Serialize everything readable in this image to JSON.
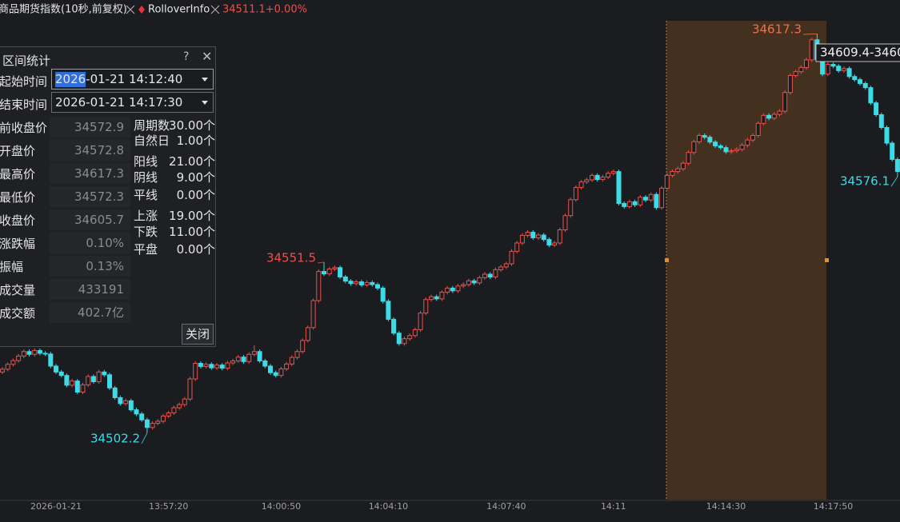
{
  "tabs": [
    "商品期货指数(10秒,前复权)",
    "RolloverInfo"
  ],
  "quote": "34511.1+0.00%",
  "chart_data": {
    "type": "candlestick",
    "x": [
      null,
      null,
      null,
      null,
      null,
      null,
      null,
      null,
      null,
      null,
      "2026-01-21",
      null,
      null,
      null,
      null,
      null,
      null,
      null,
      null,
      null,
      null,
      null,
      null,
      null,
      null,
      null,
      null,
      null,
      null,
      null,
      null,
      "13:57:20",
      null,
      null,
      null,
      null,
      null,
      null,
      null,
      null,
      null,
      null,
      null,
      null,
      null,
      null,
      null,
      null,
      null,
      null,
      null,
      null,
      "14:00:50",
      null,
      null,
      null,
      null,
      null,
      null,
      null,
      null,
      null,
      null,
      null,
      null,
      null,
      null,
      null,
      null,
      null,
      null,
      null,
      "14:04:10",
      null,
      null,
      null,
      null,
      null,
      null,
      null,
      null,
      null,
      null,
      null,
      null,
      null,
      null,
      null,
      null,
      null,
      null,
      null,
      null,
      null,
      "14:07:40",
      null,
      null,
      null,
      null,
      null,
      null,
      null,
      null,
      null,
      null,
      null,
      null,
      null,
      null,
      null,
      null,
      null,
      null,
      null,
      "14:11",
      null,
      null,
      null,
      null,
      null,
      null,
      null,
      null,
      null,
      null,
      null,
      null,
      null,
      null,
      null,
      null,
      null,
      null,
      null,
      null,
      "14:14:30",
      null,
      null,
      null,
      null,
      null,
      null,
      null,
      null,
      null,
      null,
      null,
      null,
      null,
      null,
      null,
      null,
      null,
      null,
      null,
      "14:17:50",
      null,
      null,
      null,
      null,
      null,
      null,
      null,
      null,
      null,
      null,
      null,
      null
    ],
    "candles": [
      [
        34519.8,
        34521.2,
        34519.2,
        34520.6
      ],
      [
        34520.6,
        34522.6,
        34520.0,
        34522.0
      ],
      [
        34522.0,
        34523.7,
        34521.4,
        34523.1
      ],
      [
        34523.1,
        34525.0,
        34522.5,
        34524.4
      ],
      [
        34524.4,
        34526.3,
        34523.8,
        34525.7
      ],
      [
        34525.7,
        34526.3,
        34524.3,
        34524.9
      ],
      [
        34524.9,
        34526.6,
        34524.3,
        34526.0
      ],
      [
        34526.0,
        34526.6,
        34524.6,
        34525.2
      ],
      [
        34525.2,
        34525.8,
        34524.4,
        34525.0
      ],
      [
        34525.0,
        34525.6,
        34520.9,
        34521.5
      ],
      [
        34521.5,
        34522.1,
        34519.2,
        34519.8
      ],
      [
        34519.8,
        34520.4,
        34518.2,
        34518.8
      ],
      [
        34518.8,
        34519.4,
        34515.4,
        34516.0
      ],
      [
        34516.0,
        34517.8,
        34515.4,
        34517.2
      ],
      [
        34517.2,
        34517.8,
        34513.4,
        34514.0
      ],
      [
        34514.0,
        34516.7,
        34513.4,
        34516.1
      ],
      [
        34516.1,
        34519.1,
        34515.5,
        34518.5
      ],
      [
        34518.5,
        34519.1,
        34516.4,
        34517.0
      ],
      [
        34517.0,
        34520.4,
        34516.4,
        34519.8
      ],
      [
        34519.8,
        34520.4,
        34518.4,
        34519.0
      ],
      [
        34519.0,
        34519.6,
        34514.6,
        34515.2
      ],
      [
        34515.2,
        34515.8,
        34511.8,
        34512.4
      ],
      [
        34512.4,
        34513.0,
        34510.1,
        34510.7
      ],
      [
        34510.7,
        34512.1,
        34510.1,
        34511.5
      ],
      [
        34511.5,
        34512.1,
        34508.3,
        34508.9
      ],
      [
        34508.9,
        34509.5,
        34507.1,
        34507.7
      ],
      [
        34507.7,
        34508.3,
        34505.4,
        34506.0
      ],
      [
        34506.0,
        34506.6,
        34502.2,
        34503.8
      ],
      [
        34503.8,
        34505.6,
        34503.2,
        34505.0
      ],
      [
        34505.0,
        34506.2,
        34504.4,
        34505.6
      ],
      [
        34505.6,
        34507.7,
        34505.0,
        34507.1
      ],
      [
        34507.1,
        34508.6,
        34506.5,
        34508.0
      ],
      [
        34508.0,
        34510.1,
        34507.4,
        34509.5
      ],
      [
        34509.5,
        34511.0,
        34508.9,
        34510.4
      ],
      [
        34510.4,
        34512.6,
        34509.8,
        34512.0
      ],
      [
        34512.0,
        34518.4,
        34511.4,
        34517.8
      ],
      [
        34517.8,
        34522.9,
        34517.2,
        34522.3
      ],
      [
        34522.3,
        34522.9,
        34520.8,
        34521.4
      ],
      [
        34521.4,
        34522.6,
        34520.8,
        34522.0
      ],
      [
        34522.0,
        34522.6,
        34520.4,
        34521.0
      ],
      [
        34521.0,
        34522.4,
        34520.4,
        34521.8
      ],
      [
        34521.8,
        34522.4,
        34520.3,
        34520.9
      ],
      [
        34520.9,
        34523.0,
        34520.3,
        34522.4
      ],
      [
        34522.4,
        34523.6,
        34521.8,
        34523.0
      ],
      [
        34523.0,
        34524.7,
        34522.4,
        34524.1
      ],
      [
        34524.1,
        34524.7,
        34522.2,
        34522.8
      ],
      [
        34522.8,
        34525.5,
        34522.2,
        34524.9
      ],
      [
        34524.9,
        34527.5,
        34524.3,
        34525.7
      ],
      [
        34525.7,
        34526.3,
        34522.4,
        34523.0
      ],
      [
        34523.0,
        34523.6,
        34520.9,
        34521.5
      ],
      [
        34521.5,
        34522.1,
        34519.0,
        34519.6
      ],
      [
        34519.6,
        34520.2,
        34518.2,
        34518.8
      ],
      [
        34518.8,
        34521.3,
        34518.2,
        34520.7
      ],
      [
        34520.7,
        34522.7,
        34520.1,
        34522.1
      ],
      [
        34522.1,
        34524.6,
        34521.5,
        34524.0
      ],
      [
        34524.0,
        34526.3,
        34523.4,
        34525.7
      ],
      [
        34525.7,
        34529.5,
        34525.1,
        34528.9
      ],
      [
        34528.9,
        34533.2,
        34528.3,
        34532.6
      ],
      [
        34532.6,
        34541.0,
        34532.0,
        34540.4
      ],
      [
        34540.4,
        34549.4,
        34539.8,
        34548.8
      ],
      [
        34548.8,
        34551.5,
        34547.5,
        34548.1
      ],
      [
        34548.1,
        34550.1,
        34547.5,
        34549.5
      ],
      [
        34549.5,
        34550.5,
        34548.9,
        34549.9
      ],
      [
        34549.9,
        34550.5,
        34546.6,
        34547.2
      ],
      [
        34547.2,
        34547.8,
        34545.4,
        34546.0
      ],
      [
        34546.0,
        34546.6,
        34544.7,
        34545.3
      ],
      [
        34545.3,
        34546.4,
        34544.7,
        34545.8
      ],
      [
        34545.8,
        34546.4,
        34544.3,
        34544.9
      ],
      [
        34544.9,
        34546.2,
        34544.3,
        34545.6
      ],
      [
        34545.6,
        34546.2,
        34544.4,
        34545.0
      ],
      [
        34545.0,
        34545.6,
        34543.4,
        34544.0
      ],
      [
        34544.0,
        34544.6,
        34539.6,
        34540.2
      ],
      [
        34540.2,
        34540.8,
        34534.4,
        34535.0
      ],
      [
        34535.0,
        34535.6,
        34530.4,
        34531.0
      ],
      [
        34531.0,
        34531.6,
        34527.4,
        34528.0
      ],
      [
        34528.0,
        34530.0,
        34527.4,
        34529.4
      ],
      [
        34529.4,
        34530.9,
        34528.8,
        34530.3
      ],
      [
        34530.3,
        34532.6,
        34529.7,
        34532.0
      ],
      [
        34532.0,
        34537.4,
        34531.4,
        34536.8
      ],
      [
        34536.8,
        34541.3,
        34536.2,
        34540.7
      ],
      [
        34540.7,
        34542.1,
        34540.1,
        34541.5
      ],
      [
        34541.5,
        34542.1,
        34540.3,
        34540.9
      ],
      [
        34540.9,
        34543.4,
        34540.3,
        34542.8
      ],
      [
        34542.8,
        34544.6,
        34542.2,
        34544.0
      ],
      [
        34544.0,
        34544.6,
        34542.6,
        34543.2
      ],
      [
        34543.2,
        34545.2,
        34542.6,
        34544.6
      ],
      [
        34544.6,
        34545.6,
        34544.0,
        34545.0
      ],
      [
        34545.0,
        34546.7,
        34544.4,
        34546.1
      ],
      [
        34546.1,
        34546.7,
        34544.9,
        34545.5
      ],
      [
        34545.5,
        34547.6,
        34544.9,
        34547.0
      ],
      [
        34547.0,
        34548.6,
        34546.4,
        34548.0
      ],
      [
        34548.0,
        34548.6,
        34546.6,
        34547.2
      ],
      [
        34547.2,
        34549.9,
        34546.6,
        34549.3
      ],
      [
        34549.3,
        34550.7,
        34548.7,
        34550.1
      ],
      [
        34550.1,
        34551.6,
        34549.5,
        34551.0
      ],
      [
        34551.0,
        34555.2,
        34550.4,
        34554.6
      ],
      [
        34554.6,
        34557.6,
        34554.0,
        34557.0
      ],
      [
        34557.0,
        34559.8,
        34556.4,
        34559.2
      ],
      [
        34559.2,
        34560.7,
        34558.6,
        34560.1
      ],
      [
        34560.1,
        34560.7,
        34557.9,
        34558.5
      ],
      [
        34558.5,
        34559.9,
        34557.9,
        34559.3
      ],
      [
        34559.3,
        34559.9,
        34557.4,
        34558.0
      ],
      [
        34558.0,
        34558.6,
        34555.8,
        34556.4
      ],
      [
        34556.4,
        34557.6,
        34555.8,
        34557.0
      ],
      [
        34557.0,
        34561.4,
        34556.4,
        34560.8
      ],
      [
        34560.8,
        34565.5,
        34560.2,
        34564.9
      ],
      [
        34564.9,
        34570.1,
        34564.3,
        34569.5
      ],
      [
        34569.5,
        34573.6,
        34568.9,
        34573.0
      ],
      [
        34573.0,
        34575.2,
        34572.4,
        34574.6
      ],
      [
        34574.6,
        34575.8,
        34574.0,
        34575.2
      ],
      [
        34575.2,
        34577.1,
        34574.6,
        34576.5
      ],
      [
        34576.5,
        34577.1,
        34574.7,
        34575.3
      ],
      [
        34575.3,
        34576.6,
        34574.7,
        34576.0
      ],
      [
        34576.0,
        34577.7,
        34575.4,
        34577.1
      ],
      [
        34577.1,
        34578.2,
        34576.5,
        34577.6
      ],
      [
        34577.6,
        34578.2,
        34567.8,
        34568.4
      ],
      [
        34568.4,
        34569.0,
        34566.9,
        34567.5
      ],
      [
        34567.5,
        34569.5,
        34566.9,
        34568.9
      ],
      [
        34568.9,
        34569.5,
        34567.4,
        34568.0
      ],
      [
        34568.0,
        34570.8,
        34567.4,
        34570.2
      ],
      [
        34570.2,
        34570.8,
        34568.8,
        34569.4
      ],
      [
        34569.4,
        34571.6,
        34568.8,
        34571.0
      ],
      [
        34571.0,
        34571.6,
        34566.6,
        34567.2
      ],
      [
        34567.2,
        34573.4,
        34566.6,
        34572.8
      ],
      [
        34572.8,
        34577.1,
        34572.3,
        34576.5
      ],
      [
        34576.5,
        34578.2,
        34575.9,
        34577.6
      ],
      [
        34577.6,
        34579.0,
        34577.0,
        34578.4
      ],
      [
        34578.4,
        34580.6,
        34577.8,
        34580.0
      ],
      [
        34580.0,
        34583.7,
        34579.4,
        34583.1
      ],
      [
        34583.1,
        34586.8,
        34582.5,
        34586.2
      ],
      [
        34586.2,
        34588.6,
        34585.6,
        34588.0
      ],
      [
        34588.0,
        34588.6,
        34586.9,
        34587.5
      ],
      [
        34587.5,
        34588.1,
        34585.5,
        34586.1
      ],
      [
        34586.1,
        34586.7,
        34584.4,
        34585.0
      ],
      [
        34585.0,
        34585.6,
        34583.9,
        34584.5
      ],
      [
        34584.5,
        34585.1,
        34582.7,
        34583.3
      ],
      [
        34583.3,
        34584.2,
        34582.7,
        34583.6
      ],
      [
        34583.6,
        34584.6,
        34583.0,
        34584.0
      ],
      [
        34584.0,
        34585.8,
        34583.4,
        34585.2
      ],
      [
        34585.2,
        34587.3,
        34584.6,
        34586.7
      ],
      [
        34586.7,
        34588.6,
        34586.1,
        34588.0
      ],
      [
        34588.0,
        34592.1,
        34587.4,
        34591.5
      ],
      [
        34591.5,
        34594.4,
        34590.9,
        34593.8
      ],
      [
        34593.8,
        34594.4,
        34592.4,
        34593.0
      ],
      [
        34593.0,
        34594.7,
        34592.4,
        34594.1
      ],
      [
        34594.1,
        34595.6,
        34593.5,
        34595.0
      ],
      [
        34595.0,
        34601.0,
        34594.4,
        34600.4
      ],
      [
        34600.4,
        34605.9,
        34599.8,
        34605.3
      ],
      [
        34605.3,
        34607.0,
        34604.7,
        34606.4
      ],
      [
        34606.4,
        34608.2,
        34605.8,
        34607.6
      ],
      [
        34607.6,
        34610.4,
        34607.0,
        34609.8
      ],
      [
        34609.8,
        34616.2,
        34609.2,
        34615.6
      ],
      [
        34615.6,
        34617.3,
        34609.3,
        34609.9
      ],
      [
        34609.9,
        34610.5,
        34605.1,
        34605.7
      ],
      [
        34605.7,
        34609.1,
        34605.1,
        34608.5
      ],
      [
        34608.5,
        34609.1,
        34607.4,
        34608.0
      ],
      [
        34608.0,
        34608.6,
        34606.1,
        34606.7
      ],
      [
        34606.7,
        34607.9,
        34606.1,
        34607.3
      ],
      [
        34607.3,
        34607.9,
        34604.4,
        34605.0
      ],
      [
        34605.0,
        34605.6,
        34603.5,
        34604.1
      ],
      [
        34604.1,
        34604.7,
        34602.4,
        34603.0
      ],
      [
        34603.0,
        34603.6,
        34601.2,
        34601.8
      ],
      [
        34601.8,
        34602.4,
        34596.8,
        34597.4
      ],
      [
        34597.4,
        34598.0,
        34593.4,
        34594.0
      ],
      [
        34594.0,
        34594.6,
        34589.7,
        34590.3
      ],
      [
        34590.3,
        34590.9,
        34585.2,
        34585.8
      ],
      [
        34585.8,
        34586.4,
        34580.5,
        34581.1
      ],
      [
        34581.1,
        34581.7,
        34576.1,
        34577.6
      ]
    ],
    "ylim": [
      34483,
      34622
    ],
    "up_color": "#e8524e",
    "down_color": "#3ddbe8",
    "annotations": [
      "34609.4-3460"
    ]
  },
  "dialog": {
    "title": "区间统计",
    "start": {
      "label": "起始时间",
      "value": "2026-01-21 14:12:40"
    },
    "end": {
      "label": "结束时间",
      "value": "2026-01-21 14:17:30"
    },
    "rows": [
      [
        "前收盘价",
        "34572.9"
      ],
      [
        "开盘价",
        "34572.8"
      ],
      [
        "最高价",
        "34617.3"
      ],
      [
        "最低价",
        "34572.3"
      ],
      [
        "收盘价",
        "34605.7"
      ],
      [
        "涨跌幅",
        "0.10%"
      ],
      [
        "振幅",
        "0.13%"
      ],
      [
        "成交量",
        "433191"
      ],
      [
        "成交额",
        "402.7亿"
      ]
    ],
    "stats": [
      [
        "周期数",
        "30.00个"
      ],
      [
        "自然日",
        "1.00个"
      ],
      [
        "阳线",
        "21.00个"
      ],
      [
        "阴线",
        "9.00个"
      ],
      [
        "平线",
        "0.00个"
      ],
      [
        "上涨",
        "19.00个"
      ],
      [
        "下跌",
        "11.00个"
      ],
      [
        "平盘",
        "0.00个"
      ]
    ],
    "close_button": "关闭"
  }
}
